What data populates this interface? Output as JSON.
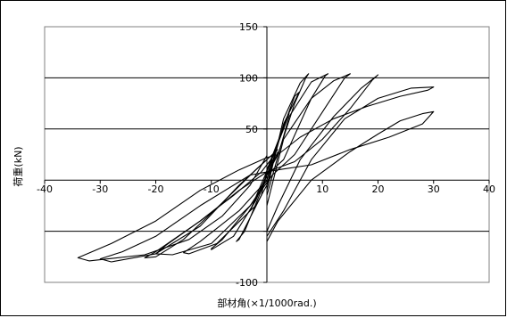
{
  "chart_data": {
    "type": "line",
    "title": "",
    "xlabel": "部材角(×1/1000rad.)",
    "ylabel": "荷重(kN)",
    "xlim": [
      -40,
      40
    ],
    "ylim": [
      -100,
      150
    ],
    "xticks": [
      -40,
      -30,
      -20,
      -10,
      10,
      20,
      30,
      40
    ],
    "yticks": [
      150,
      100,
      50,
      -100
    ],
    "ytick_labels": [
      "150",
      "100",
      "50",
      "-100"
    ],
    "xtick_labels": [
      "-40",
      "-30",
      "-20",
      "-10",
      "10",
      "20",
      "30",
      "40"
    ],
    "grid": true,
    "legend": "none",
    "line_color": "#000000",
    "series": [
      {
        "points": [
          [
            0,
            0
          ],
          [
            2.5,
            45
          ],
          [
            4,
            65
          ],
          [
            3,
            50
          ],
          [
            0.5,
            15
          ],
          [
            -1.5,
            -10
          ],
          [
            -3,
            -30
          ],
          [
            -2,
            -25
          ],
          [
            0,
            -5
          ],
          [
            1,
            15
          ],
          [
            2,
            28
          ]
        ]
      },
      {
        "points": [
          [
            0,
            -5
          ],
          [
            3,
            55
          ],
          [
            5.8,
            86
          ],
          [
            5,
            82
          ],
          [
            2.5,
            45
          ],
          [
            0,
            10
          ],
          [
            -1,
            -15
          ],
          [
            -5,
            -58
          ],
          [
            -5.5,
            -60
          ],
          [
            -4,
            -50
          ],
          [
            -1,
            -10
          ],
          [
            1,
            20
          ]
        ]
      },
      {
        "points": [
          [
            0,
            -10
          ],
          [
            3,
            60
          ],
          [
            6,
            95
          ],
          [
            7.5,
            104
          ],
          [
            7,
            100
          ],
          [
            5,
            75
          ],
          [
            2,
            25
          ],
          [
            0,
            5
          ],
          [
            -2,
            -20
          ],
          [
            -6,
            -55
          ],
          [
            -10,
            -68
          ],
          [
            -10,
            -67
          ],
          [
            -8,
            -58
          ],
          [
            -3,
            -25
          ],
          [
            0,
            0
          ]
        ]
      },
      {
        "points": [
          [
            0,
            -15
          ],
          [
            4,
            62
          ],
          [
            8,
            96
          ],
          [
            11,
            104
          ],
          [
            10.5,
            102
          ],
          [
            8,
            80
          ],
          [
            3,
            20
          ],
          [
            0,
            5
          ],
          [
            -3,
            -30
          ],
          [
            -9,
            -62
          ],
          [
            -14,
            -72
          ],
          [
            -15,
            -71
          ],
          [
            -12,
            -60
          ],
          [
            -5,
            -30
          ],
          [
            0,
            0
          ]
        ]
      },
      {
        "points": [
          [
            0,
            -25
          ],
          [
            3,
            40
          ],
          [
            8,
            80
          ],
          [
            12,
            97
          ],
          [
            15,
            104
          ],
          [
            14,
            100
          ],
          [
            11,
            75
          ],
          [
            5,
            25
          ],
          [
            1,
            5
          ],
          [
            -3,
            -25
          ],
          [
            -10,
            -62
          ],
          [
            -17,
            -73
          ],
          [
            -20,
            -72
          ],
          [
            -18,
            -63
          ],
          [
            -12,
            -40
          ],
          [
            -6,
            -15
          ],
          [
            -1,
            8
          ],
          [
            1,
            22
          ]
        ]
      },
      {
        "points": [
          [
            0,
            -50
          ],
          [
            2,
            -25
          ],
          [
            6,
            20
          ],
          [
            12,
            62
          ],
          [
            17,
            90
          ],
          [
            20,
            103
          ],
          [
            19,
            98
          ],
          [
            15,
            70
          ],
          [
            10,
            40
          ],
          [
            5,
            18
          ],
          [
            0,
            8
          ],
          [
            -5,
            -10
          ],
          [
            -12,
            -40
          ],
          [
            -20,
            -70
          ],
          [
            -22,
            -76
          ],
          [
            -20,
            -75
          ],
          [
            -15,
            -58
          ],
          [
            -8,
            -22
          ],
          [
            -2,
            10
          ],
          [
            0,
            20
          ]
        ]
      },
      {
        "points": [
          [
            0,
            -60
          ],
          [
            2,
            -40
          ],
          [
            8,
            0
          ],
          [
            15,
            28
          ],
          [
            20,
            45
          ],
          [
            24,
            58
          ],
          [
            28,
            65
          ],
          [
            30,
            67
          ],
          [
            28,
            55
          ],
          [
            22,
            42
          ],
          [
            15,
            30
          ],
          [
            8,
            15
          ],
          [
            2,
            10
          ],
          [
            -3,
            5
          ],
          [
            -12,
            -25
          ],
          [
            -20,
            -55
          ],
          [
            -26,
            -70
          ],
          [
            -30,
            -77
          ],
          [
            -28,
            -80
          ],
          [
            -20,
            -72
          ],
          [
            -12,
            -45
          ],
          [
            -5,
            -5
          ],
          [
            0,
            20
          ],
          [
            2,
            30
          ]
        ]
      },
      {
        "points": [
          [
            0,
            -55
          ],
          [
            3,
            -30
          ],
          [
            8,
            20
          ],
          [
            14,
            60
          ],
          [
            20,
            80
          ],
          [
            26,
            90
          ],
          [
            30,
            91
          ],
          [
            29,
            88
          ],
          [
            24,
            82
          ],
          [
            18,
            72
          ],
          [
            12,
            60
          ],
          [
            6,
            42
          ],
          [
            2,
            25
          ],
          [
            0,
            22
          ],
          [
            -5,
            10
          ],
          [
            -12,
            -10
          ],
          [
            -20,
            -40
          ],
          [
            -28,
            -62
          ],
          [
            -34,
            -76
          ],
          [
            -32,
            -79
          ],
          [
            -22,
            -73
          ],
          [
            -14,
            -58
          ],
          [
            -8,
            -35
          ],
          [
            -3,
            -5
          ],
          [
            0,
            24
          ]
        ]
      }
    ]
  }
}
